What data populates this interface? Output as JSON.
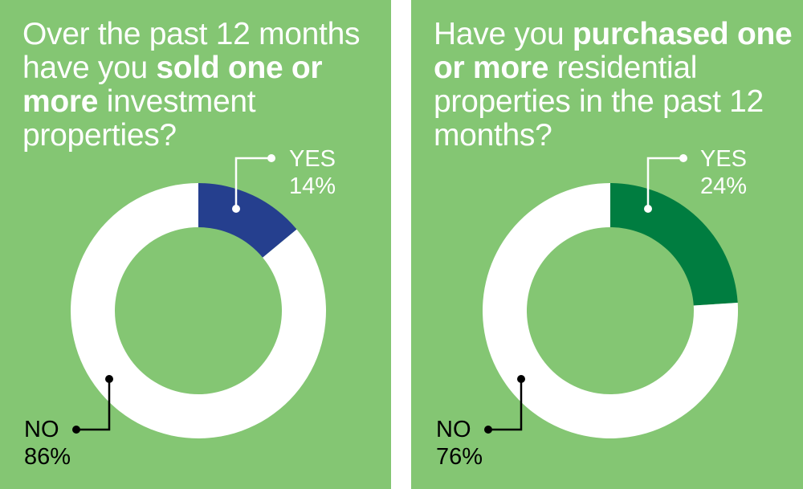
{
  "colors": {
    "background": "#84c673",
    "ring": "#ffffff",
    "divider": "#ffffff"
  },
  "chart_data": [
    {
      "type": "pie",
      "variant": "donut",
      "title_parts": [
        {
          "text": "Over the past 12 months have you ",
          "bold": false
        },
        {
          "text": "sold one or more",
          "bold": true
        },
        {
          "text": " investment properties?",
          "bold": false
        }
      ],
      "slices": [
        {
          "label": "YES",
          "value": 14,
          "display": "14%",
          "color": "#253f8e",
          "text_color": "#ffffff"
        },
        {
          "label": "NO",
          "value": 86,
          "display": "86%",
          "color": "#ffffff",
          "text_color": "#000000"
        }
      ]
    },
    {
      "type": "pie",
      "variant": "donut",
      "title_parts": [
        {
          "text": "Have you ",
          "bold": false
        },
        {
          "text": "purchased one or more",
          "bold": true
        },
        {
          "text": " residential properties in the past 12 months?",
          "bold": false
        }
      ],
      "slices": [
        {
          "label": "YES",
          "value": 24,
          "display": "24%",
          "color": "#007d40",
          "text_color": "#ffffff"
        },
        {
          "label": "NO",
          "value": 76,
          "display": "76%",
          "color": "#ffffff",
          "text_color": "#000000"
        }
      ]
    }
  ]
}
